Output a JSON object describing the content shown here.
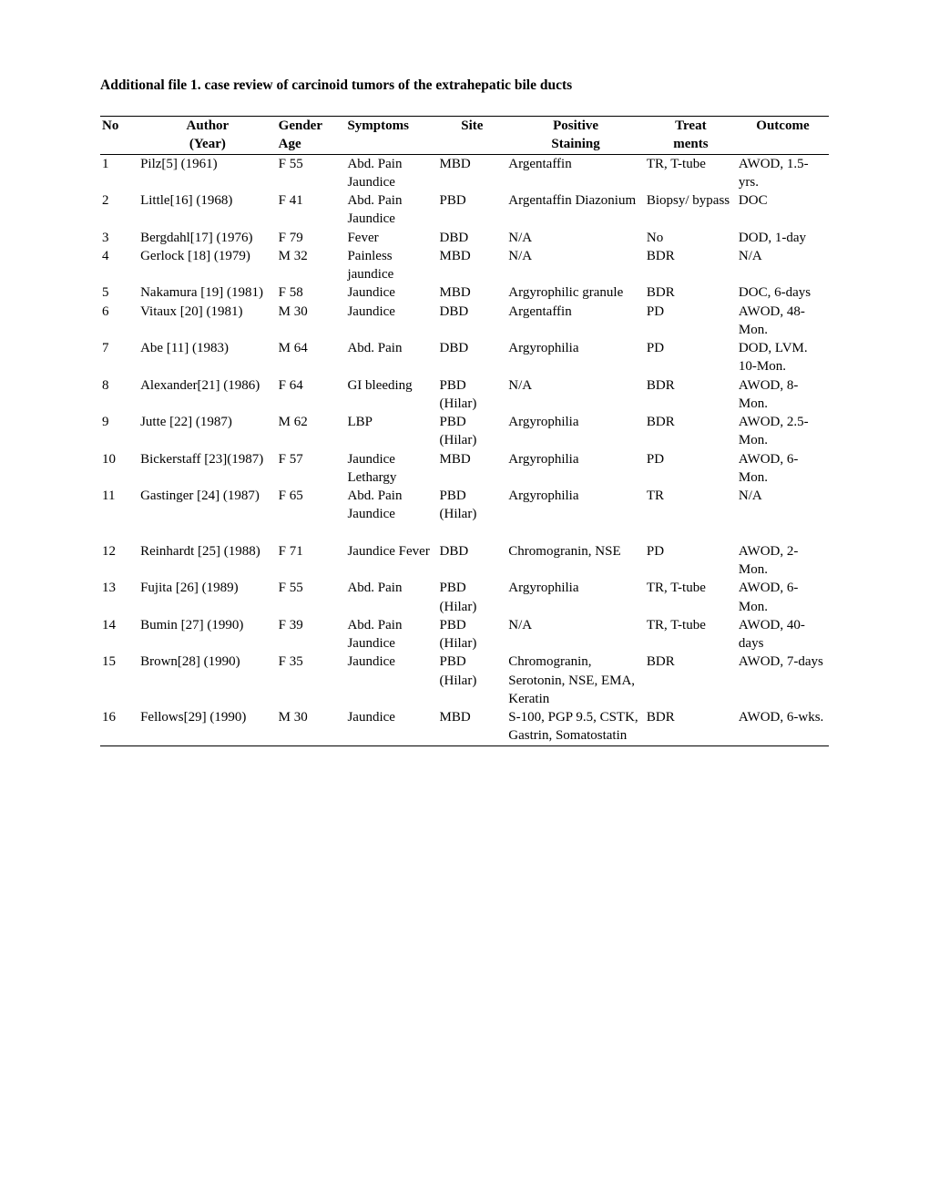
{
  "title": "Additional file 1. case review of carcinoid tumors of the extrahepatic bile ducts",
  "columns": {
    "no": {
      "h1": "No",
      "h2": ""
    },
    "author": {
      "h1": "Author",
      "h2": "(Year)"
    },
    "gender": {
      "h1": "Gender",
      "h2": "Age"
    },
    "symptoms": {
      "h1": "Symptoms",
      "h2": ""
    },
    "site": {
      "h1": "Site",
      "h2": ""
    },
    "staining": {
      "h1": "Positive",
      "h2": "Staining"
    },
    "treat": {
      "h1": "Treat",
      "h2": "ments"
    },
    "outcome": {
      "h1": "Outcome",
      "h2": ""
    }
  },
  "rows": [
    {
      "no": "1",
      "author": "Pilz[5] (1961)",
      "gender": "F 55",
      "symptoms": "Abd. Pain Jaundice",
      "site": "MBD",
      "staining": "Argentaffin",
      "treat": "TR, T-tube",
      "outcome": "AWOD, 1.5-yrs."
    },
    {
      "no": "2",
      "author": "Little[16] (1968)",
      "gender": "F 41",
      "symptoms": "Abd. Pain Jaundice",
      "site": "PBD",
      "staining": "Argentaffin Diazonium",
      "treat": "Biopsy/ bypass",
      "outcome": "DOC"
    },
    {
      "no": "3",
      "author": "Bergdahl[17] (1976)",
      "gender": "F 79",
      "symptoms": "Fever",
      "site": "DBD",
      "staining": "N/A",
      "treat": "No",
      "outcome": "DOD, 1-day"
    },
    {
      "no": "4",
      "author": "Gerlock [18] (1979)",
      "gender": "M 32",
      "symptoms": "Painless jaundice",
      "site": "MBD",
      "staining": "N/A",
      "treat": "BDR",
      "outcome": "N/A"
    },
    {
      "no": "5",
      "author": "Nakamura [19] (1981)",
      "gender": "F 58",
      "symptoms": "Jaundice",
      "site": "MBD",
      "staining": "Argyrophilic granule",
      "treat": "BDR",
      "outcome": "DOC, 6-days"
    },
    {
      "no": "6",
      "author": "Vitaux [20] (1981)",
      "gender": "M 30",
      "symptoms": "Jaundice",
      "site": "DBD",
      "staining": "Argentaffin",
      "treat": "PD",
      "outcome": "AWOD, 48-Mon."
    },
    {
      "no": "7",
      "author": "Abe [11] (1983)",
      "gender": "M 64",
      "symptoms": "Abd. Pain",
      "site": "DBD",
      "staining": "Argyrophilia",
      "treat": "PD",
      "outcome": "DOD, LVM. 10-Mon."
    },
    {
      "no": "8",
      "author": "Alexander[21] (1986)",
      "gender": "F 64",
      "symptoms": "GI bleeding",
      "site": "PBD (Hilar)",
      "staining": "N/A",
      "treat": "BDR",
      "outcome": "AWOD, 8-Mon."
    },
    {
      "no": "9",
      "author": "Jutte [22] (1987)",
      "gender": "M 62",
      "symptoms": "LBP",
      "site": "PBD (Hilar)",
      "staining": "Argyrophilia",
      "treat": "BDR",
      "outcome": "AWOD, 2.5-Mon."
    },
    {
      "no": "10",
      "author": "Bickerstaff [23](1987)",
      "gender": "F 57",
      "symptoms": "Jaundice Lethargy",
      "site": "MBD",
      "staining": "Argyrophilia",
      "treat": "PD",
      "outcome": "AWOD, 6-Mon."
    },
    {
      "no": "11",
      "author": "Gastinger [24] (1987)",
      "gender": "F 65",
      "symptoms": "Abd. Pain Jaundice",
      "site": "PBD (Hilar)",
      "staining": "Argyrophilia",
      "treat": "TR",
      "outcome": "N/A",
      "spacer": true
    },
    {
      "no": "12",
      "author": "Reinhardt [25] (1988)",
      "gender": "F 71",
      "symptoms": "Jaundice Fever",
      "site": "DBD",
      "staining": "Chromogranin, NSE",
      "treat": "PD",
      "outcome": "AWOD, 2-Mon."
    },
    {
      "no": "13",
      "author": "Fujita [26] (1989)",
      "gender": "F 55",
      "symptoms": "Abd. Pain",
      "site": "PBD (Hilar)",
      "staining": "Argyrophilia",
      "treat": "TR, T-tube",
      "outcome": "AWOD, 6-Mon."
    },
    {
      "no": "14",
      "author": "Bumin [27] (1990)",
      "gender": "F 39",
      "symptoms": "Abd. Pain Jaundice",
      "site": "PBD (Hilar)",
      "staining": "N/A",
      "treat": "TR, T-tube",
      "outcome": "AWOD, 40-days"
    },
    {
      "no": "15",
      "author": "Brown[28] (1990)",
      "gender": "F 35",
      "symptoms": "Jaundice",
      "site": "PBD (Hilar)",
      "staining": "Chromogranin, Serotonin, NSE, EMA, Keratin",
      "treat": "BDR",
      "outcome": "AWOD, 7-days"
    },
    {
      "no": "16",
      "author": "Fellows[29] (1990)",
      "gender": "M 30",
      "symptoms": "Jaundice",
      "site": "MBD",
      "staining": "S-100, PGP 9.5, CSTK, Gastrin, Somatostatin",
      "treat": "BDR",
      "outcome": "AWOD, 6-wks."
    }
  ],
  "style": {
    "font_family": "Times New Roman",
    "font_size_pt": 12,
    "title_font_size_pt": 12,
    "border_color": "#000000",
    "background_color": "#ffffff",
    "text_color": "#000000",
    "column_widths_pct": [
      5,
      18,
      9,
      12,
      9,
      18,
      12,
      12
    ]
  }
}
